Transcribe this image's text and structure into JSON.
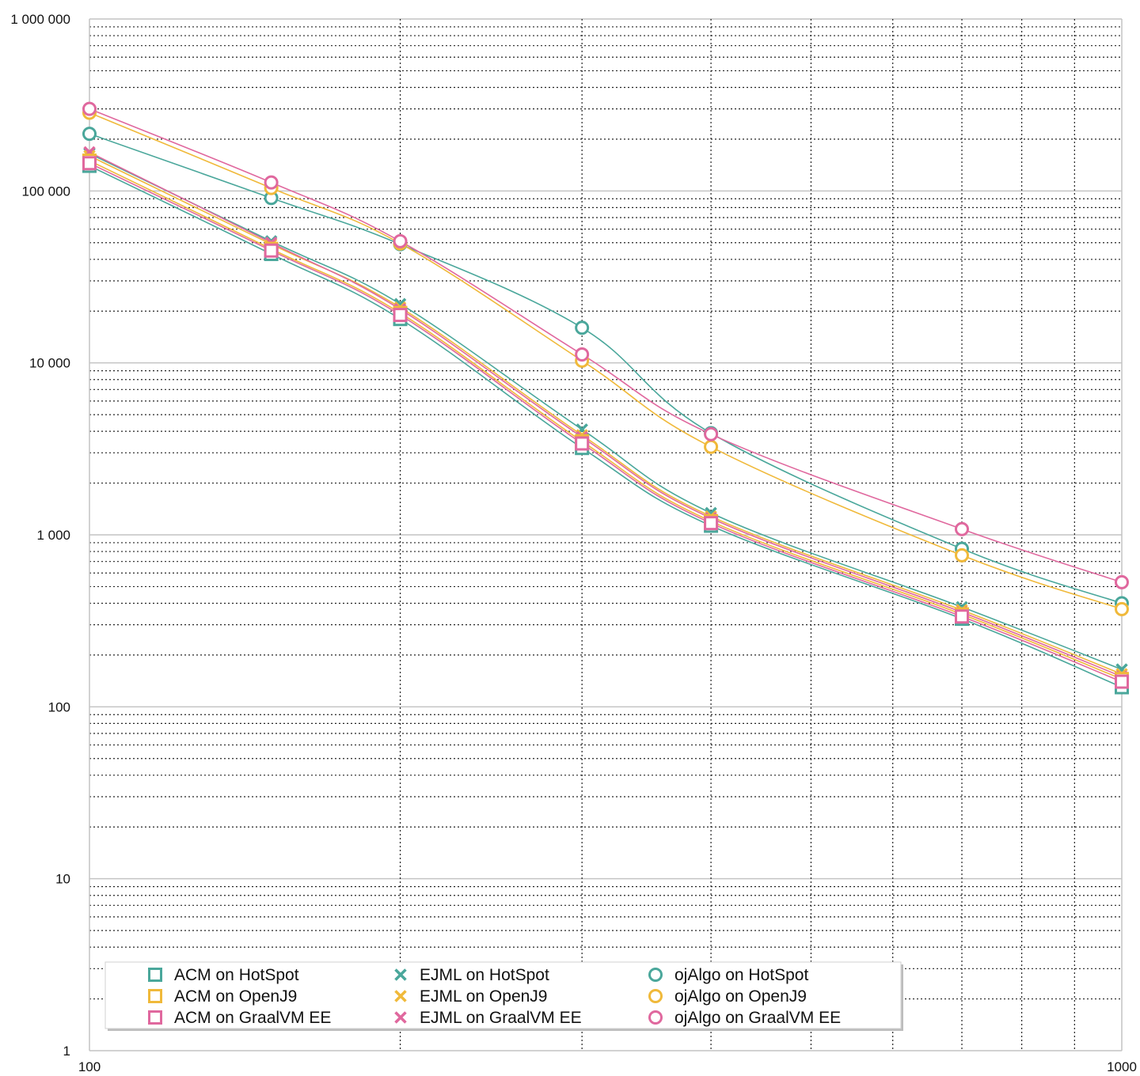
{
  "chart_data": {
    "type": "line",
    "title": "",
    "xlabel": "",
    "ylabel": "",
    "x_scale": "log",
    "y_scale": "log",
    "xlim": [
      100,
      1000
    ],
    "ylim": [
      1,
      1000000
    ],
    "grid": true,
    "legend_position": "bottom-left",
    "x_tick_labels": [
      {
        "value": 100,
        "label": "100"
      },
      {
        "value": 1000,
        "label": "1000"
      }
    ],
    "y_tick_labels": [
      {
        "value": 1,
        "label": "1"
      },
      {
        "value": 10,
        "label": "10"
      },
      {
        "value": 100,
        "label": "100"
      },
      {
        "value": 1000,
        "label": "1 000"
      },
      {
        "value": 10000,
        "label": "10 000"
      },
      {
        "value": 100000,
        "label": "100 000"
      },
      {
        "value": 1000000,
        "label": "1 000 000"
      }
    ],
    "x": [
      100,
      150,
      200,
      300,
      400,
      700,
      1000
    ],
    "series": [
      {
        "name": "ACM on HotSpot",
        "color": "#4aa79b",
        "marker": "square",
        "values": [
          140000,
          43000,
          18000,
          3200,
          1130,
          325,
          130
        ]
      },
      {
        "name": "ACM on OpenJ9",
        "color": "#f0b93a",
        "marker": "square",
        "values": [
          150000,
          46000,
          19500,
          3500,
          1200,
          345,
          145
        ]
      },
      {
        "name": "ACM on GraalVM EE",
        "color": "#e0689e",
        "marker": "square",
        "values": [
          145000,
          45000,
          19000,
          3400,
          1170,
          335,
          140
        ]
      },
      {
        "name": "EJML on HotSpot",
        "color": "#4aa79b",
        "marker": "x",
        "values": [
          165000,
          51000,
          22000,
          4100,
          1340,
          380,
          165
        ]
      },
      {
        "name": "EJML on OpenJ9",
        "color": "#f0b93a",
        "marker": "x",
        "values": [
          160000,
          49000,
          21000,
          3800,
          1280,
          365,
          155
        ]
      },
      {
        "name": "EJML on GraalVM EE",
        "color": "#e0689e",
        "marker": "x",
        "values": [
          168000,
          50000,
          20500,
          3700,
          1250,
          355,
          150
        ]
      },
      {
        "name": "ojAlgo on HotSpot",
        "color": "#4aa79b",
        "marker": "circle",
        "values": [
          215000,
          91000,
          49000,
          16000,
          3900,
          830,
          400
        ]
      },
      {
        "name": "ojAlgo on OpenJ9",
        "color": "#f0b93a",
        "marker": "circle",
        "values": [
          285000,
          104000,
          49500,
          10300,
          3250,
          760,
          370
        ]
      },
      {
        "name": "ojAlgo on GraalVM EE",
        "color": "#e0689e",
        "marker": "circle",
        "values": [
          300000,
          112000,
          51000,
          11200,
          3850,
          1080,
          530
        ]
      }
    ]
  }
}
